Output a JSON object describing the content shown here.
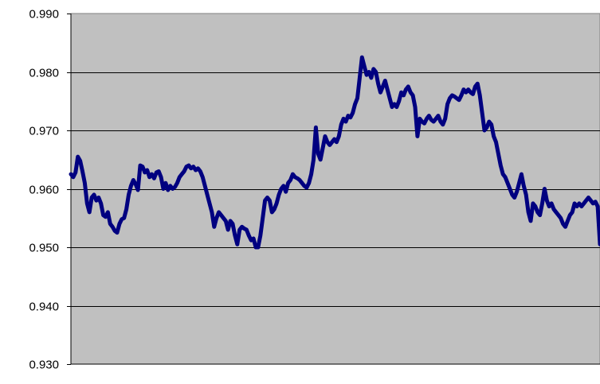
{
  "chart_data": {
    "type": "line",
    "title": "",
    "xlabel": "",
    "ylabel": "",
    "ylim": [
      0.93,
      0.99
    ],
    "y_ticks": [
      "0.990",
      "0.980",
      "0.970",
      "0.960",
      "0.950",
      "0.940",
      "0.930"
    ],
    "y_tick_values": [
      0.99,
      0.98,
      0.97,
      0.96,
      0.95,
      0.94,
      0.93
    ],
    "x_tick_labels": [],
    "grid": "horizontal",
    "legend": "none",
    "colors": {
      "plot_background": "#c0c0c0",
      "line": "#000080",
      "gridline": "#000000"
    },
    "series": [
      {
        "values": [
          0.9625,
          0.962,
          0.9628,
          0.9655,
          0.9648,
          0.963,
          0.961,
          0.9575,
          0.956,
          0.9585,
          0.959,
          0.958,
          0.9585,
          0.9575,
          0.9555,
          0.9552,
          0.956,
          0.954,
          0.9535,
          0.9528,
          0.9525,
          0.954,
          0.9548,
          0.955,
          0.9565,
          0.959,
          0.9605,
          0.9615,
          0.9608,
          0.9598,
          0.964,
          0.9638,
          0.9628,
          0.9632,
          0.962,
          0.9625,
          0.9618,
          0.9628,
          0.963,
          0.962,
          0.96,
          0.961,
          0.9598,
          0.9605,
          0.96,
          0.9603,
          0.961,
          0.962,
          0.9625,
          0.963,
          0.9638,
          0.964,
          0.9635,
          0.9638,
          0.9632,
          0.9635,
          0.963,
          0.962,
          0.9605,
          0.959,
          0.9575,
          0.956,
          0.9535,
          0.955,
          0.956,
          0.9555,
          0.955,
          0.9545,
          0.953,
          0.9545,
          0.954,
          0.952,
          0.9505,
          0.953,
          0.9535,
          0.9532,
          0.953,
          0.952,
          0.9512,
          0.9515,
          0.95,
          0.95,
          0.952,
          0.955,
          0.958,
          0.9585,
          0.958,
          0.956,
          0.9565,
          0.9575,
          0.959,
          0.96,
          0.9605,
          0.9595,
          0.961,
          0.9615,
          0.9625,
          0.962,
          0.9618,
          0.9615,
          0.961,
          0.9605,
          0.9602,
          0.961,
          0.9625,
          0.965,
          0.9705,
          0.966,
          0.965,
          0.967,
          0.969,
          0.968,
          0.9675,
          0.968,
          0.9685,
          0.968,
          0.969,
          0.971,
          0.972,
          0.9715,
          0.9725,
          0.9722,
          0.973,
          0.9745,
          0.9755,
          0.979,
          0.9825,
          0.981,
          0.9795,
          0.98,
          0.979,
          0.9805,
          0.98,
          0.978,
          0.9765,
          0.9775,
          0.9785,
          0.977,
          0.9755,
          0.974,
          0.9745,
          0.974,
          0.975,
          0.9765,
          0.976,
          0.977,
          0.9775,
          0.9765,
          0.976,
          0.974,
          0.969,
          0.972,
          0.9715,
          0.9712,
          0.972,
          0.9725,
          0.9718,
          0.9715,
          0.972,
          0.9725,
          0.9715,
          0.971,
          0.972,
          0.9745,
          0.9755,
          0.976,
          0.9758,
          0.9755,
          0.9752,
          0.976,
          0.977,
          0.9765,
          0.977,
          0.9765,
          0.9762,
          0.9775,
          0.978,
          0.976,
          0.973,
          0.97,
          0.9705,
          0.9715,
          0.971,
          0.969,
          0.968,
          0.966,
          0.964,
          0.9625,
          0.962,
          0.961,
          0.96,
          0.959,
          0.9585,
          0.9595,
          0.961,
          0.9625,
          0.9605,
          0.959,
          0.956,
          0.9545,
          0.9575,
          0.957,
          0.956,
          0.9555,
          0.9575,
          0.96,
          0.958,
          0.957,
          0.9575,
          0.9565,
          0.956,
          0.9555,
          0.955,
          0.954,
          0.9535,
          0.9545,
          0.9555,
          0.956,
          0.9575,
          0.957,
          0.9575,
          0.957,
          0.9575,
          0.958,
          0.9585,
          0.958,
          0.9575,
          0.9578,
          0.957,
          0.9505
        ]
      }
    ]
  }
}
